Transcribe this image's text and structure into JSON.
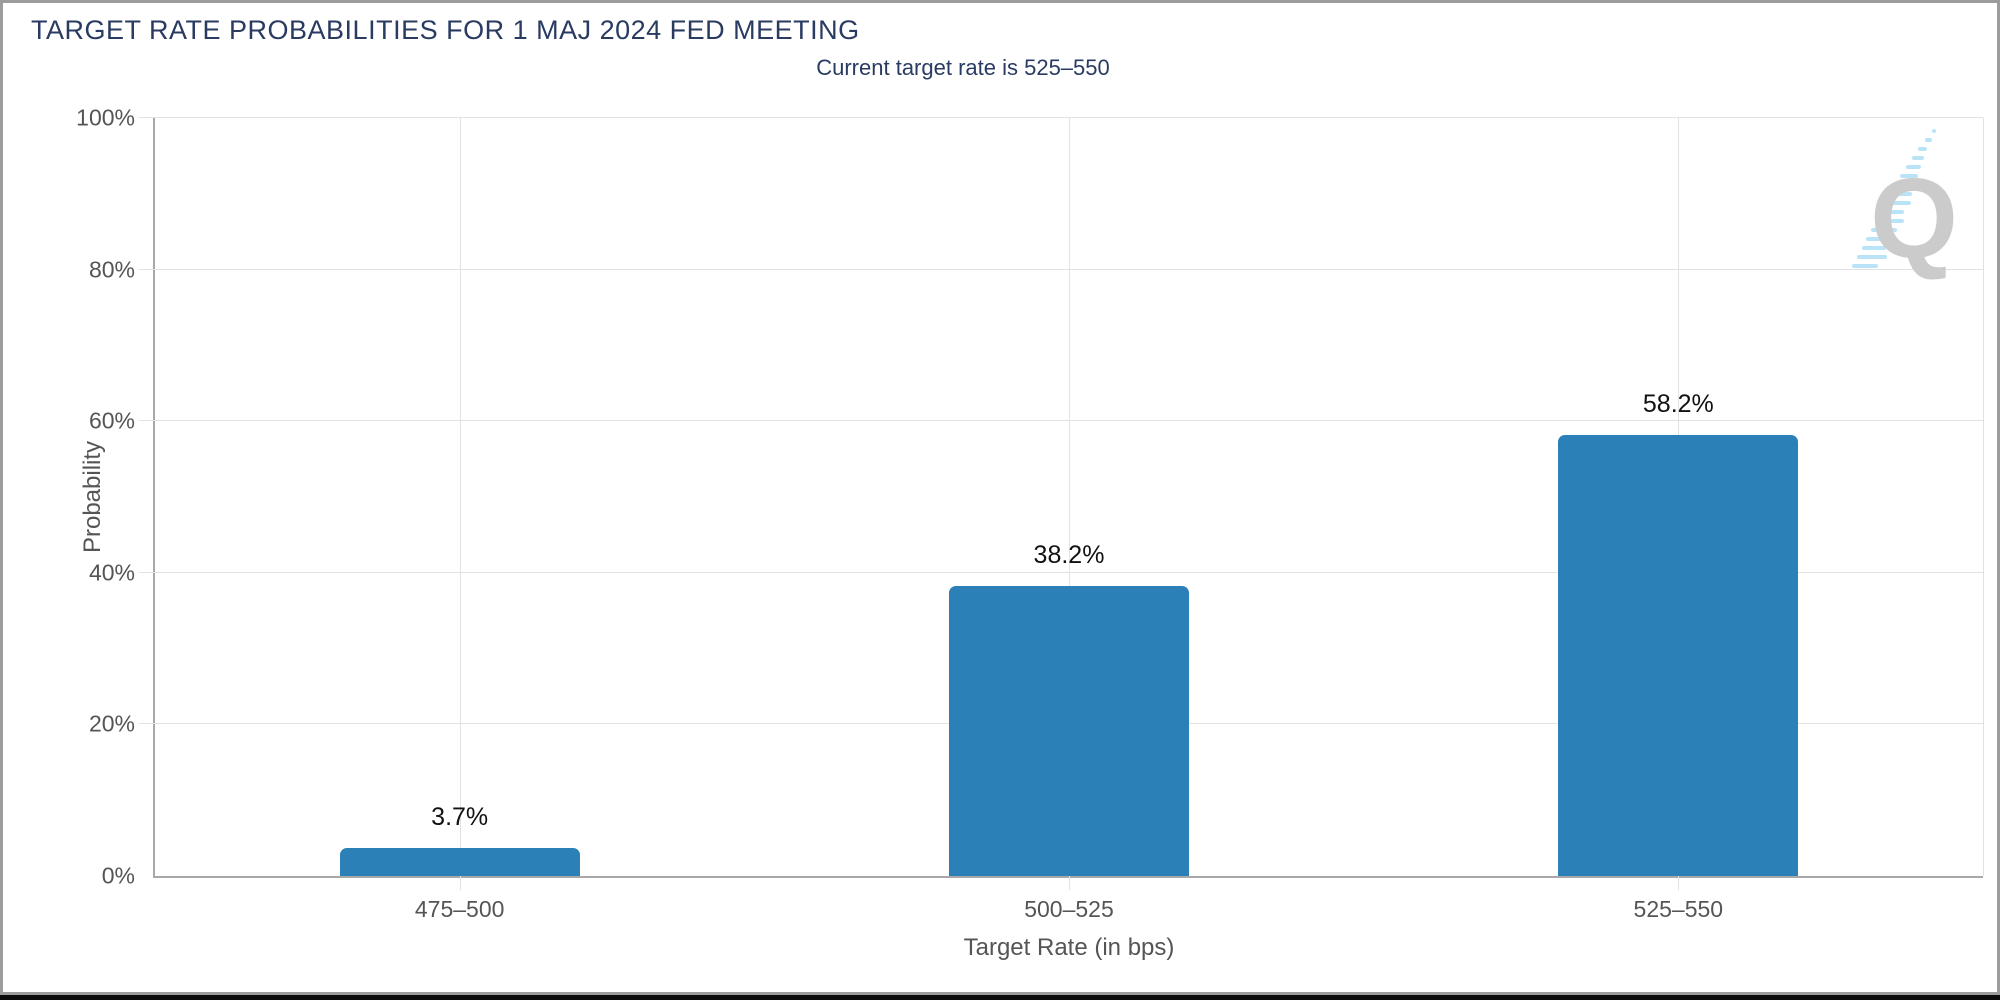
{
  "chart_data": {
    "type": "bar",
    "title": "TARGET RATE PROBABILITIES FOR 1 MAJ 2024 FED MEETING",
    "subtitle": "Current target rate is 525–550",
    "categories": [
      "475–500",
      "500–525",
      "525–550"
    ],
    "values": [
      3.7,
      38.2,
      58.2
    ],
    "value_labels": [
      "3.7%",
      "38.2%",
      "58.2%"
    ],
    "xlabel": "Target Rate (in bps)",
    "ylabel": "Probability",
    "ylim": [
      0,
      100
    ],
    "ytick_values": [
      0,
      20,
      40,
      60,
      80,
      100
    ],
    "ytick_labels": [
      "0%",
      "20%",
      "40%",
      "60%",
      "80%",
      "100%"
    ],
    "grid": true,
    "legend": false
  },
  "watermark": {
    "letter": "Q"
  },
  "colors": {
    "title_navy": "#2a3b62",
    "bar_blue": "#2b80b8",
    "axis_text_gray": "#555555",
    "grid_gray": "#e2e2e2",
    "axis_line_gray": "#a8a8a8",
    "value_label_black": "#111111",
    "watermark_gray": "#cbcbcb",
    "watermark_blue": "#b9e4f7"
  }
}
